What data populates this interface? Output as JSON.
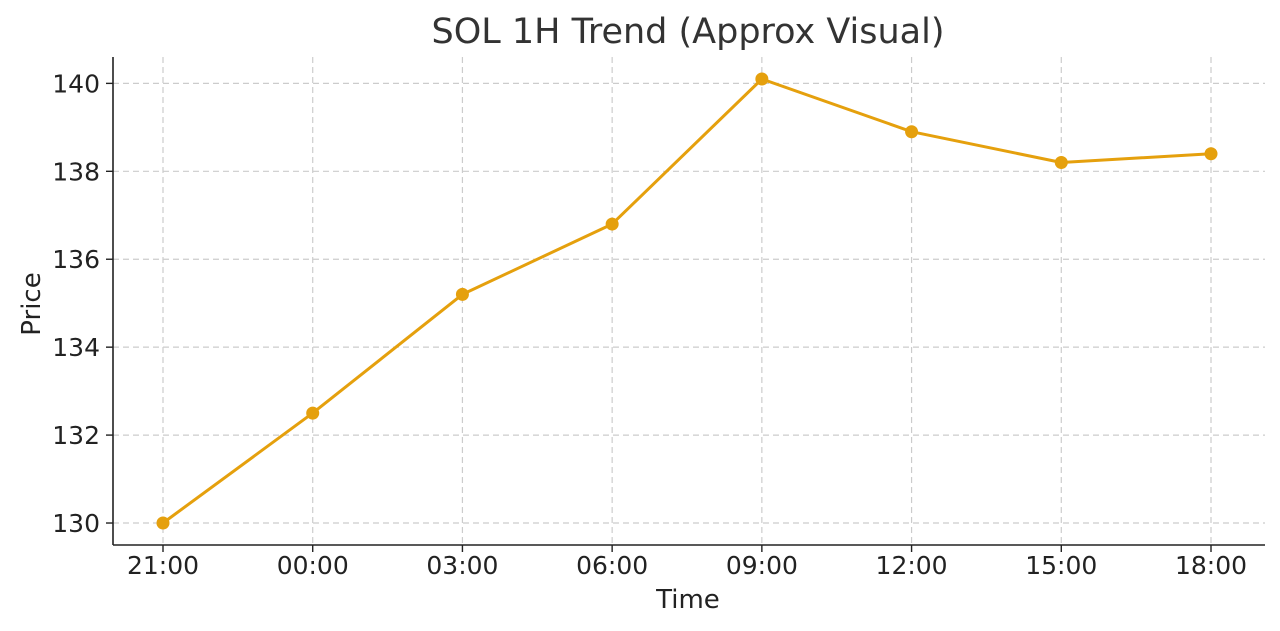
{
  "chart_data": {
    "type": "line",
    "title": "SOL 1H Trend (Approx Visual)",
    "xlabel": "Time",
    "ylabel": "Price",
    "categories": [
      "21:00",
      "00:00",
      "03:00",
      "06:00",
      "09:00",
      "12:00",
      "15:00",
      "18:00"
    ],
    "series": [
      {
        "values": [
          130.0,
          132.5,
          135.2,
          136.8,
          140.1,
          138.9,
          138.2,
          138.4
        ],
        "color": "#E5A00D",
        "marker": "circle"
      }
    ],
    "yticks": [
      130,
      132,
      134,
      136,
      138,
      140
    ],
    "ylim": [
      129.5,
      140.6
    ],
    "grid": true,
    "legend": "none"
  }
}
